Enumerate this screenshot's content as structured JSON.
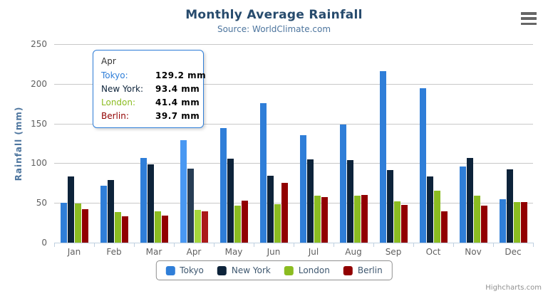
{
  "title": "Monthly Average Rainfall",
  "subtitle": "Source: WorldClimate.com",
  "credits": "Highcharts.com",
  "colors": {
    "title": "#274b6d",
    "subtitle": "#4d759e",
    "axis_labels": "#606060",
    "gridline": "#c8c8c8",
    "axis_line": "#c0d0e0",
    "legend_text": "#3e576f"
  },
  "chart_data": {
    "type": "bar",
    "title": "Monthly Average Rainfall",
    "subtitle": "Source: WorldClimate.com",
    "xlabel": "",
    "ylabel": "Rainfall (mm)",
    "ylim": [
      0,
      250
    ],
    "y_ticks": [
      0,
      50,
      100,
      150,
      200,
      250
    ],
    "grid": true,
    "legend_position": "bottom",
    "categories": [
      "Jan",
      "Feb",
      "Mar",
      "Apr",
      "May",
      "Jun",
      "Jul",
      "Aug",
      "Sep",
      "Oct",
      "Nov",
      "Dec"
    ],
    "series": [
      {
        "name": "Tokyo",
        "color": "#2f7ed8",
        "hover_color": "#4998f2",
        "values": [
          49.9,
          71.5,
          106.4,
          129.2,
          144.0,
          176.0,
          135.6,
          148.5,
          216.4,
          194.1,
          95.6,
          54.4
        ]
      },
      {
        "name": "New York",
        "color": "#0d233a",
        "hover_color": "#273d54",
        "values": [
          83.6,
          78.8,
          98.5,
          93.4,
          106.0,
          84.5,
          105.0,
          104.3,
          91.2,
          83.5,
          106.6,
          92.3
        ]
      },
      {
        "name": "London",
        "color": "#8bbc21",
        "hover_color": "#a5d63b",
        "values": [
          48.9,
          38.8,
          39.3,
          41.4,
          47.0,
          48.3,
          59.0,
          59.6,
          52.4,
          65.2,
          59.3,
          51.2
        ]
      },
      {
        "name": "Berlin",
        "color": "#910000",
        "hover_color": "#ab1a1a",
        "values": [
          42.4,
          33.2,
          34.5,
          39.7,
          52.6,
          75.5,
          57.4,
          60.4,
          47.6,
          39.1,
          46.8,
          51.1
        ]
      }
    ],
    "hovered_category": "Apr"
  },
  "tooltip": {
    "header": "Apr",
    "border_color": "#2f7ed8",
    "rows": [
      {
        "label": "Tokyo:",
        "value": "129.2 mm",
        "color": "#2f7ed8"
      },
      {
        "label": "New York:",
        "value": "93.4 mm",
        "color": "#0d233a"
      },
      {
        "label": "London:",
        "value": "41.4 mm",
        "color": "#8bbc21"
      },
      {
        "label": "Berlin:",
        "value": "39.7 mm",
        "color": "#910000"
      }
    ]
  }
}
